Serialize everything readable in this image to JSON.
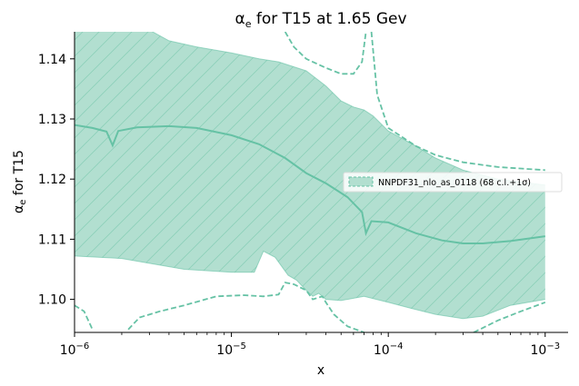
{
  "chart_data": {
    "type": "line",
    "title": "α_e for T15 at 1.65 Gev",
    "title_parts": {
      "alpha": "α",
      "sub": "e",
      "rest": " for T15 at 1.65 Gev"
    },
    "xlabel": "x",
    "ylabel": "α_e for T15",
    "ylabel_parts": {
      "alpha": "α",
      "sub": "e",
      "rest": " for T15"
    },
    "xscale": "log",
    "xlim": [
      1e-06,
      0.0014
    ],
    "ylim": [
      1.0945,
      1.1445
    ],
    "x_ticks": [
      {
        "value": 1e-06,
        "base": "10",
        "exp": "−6"
      },
      {
        "value": 1e-05,
        "base": "10",
        "exp": "−5"
      },
      {
        "value": 0.0001,
        "base": "10",
        "exp": "−4"
      },
      {
        "value": 0.001,
        "base": "10",
        "exp": "−3"
      }
    ],
    "y_ticks": [
      {
        "value": 1.1,
        "label": "1.10"
      },
      {
        "value": 1.11,
        "label": "1.11"
      },
      {
        "value": 1.12,
        "label": "1.12"
      },
      {
        "value": 1.13,
        "label": "1.13"
      },
      {
        "value": 1.14,
        "label": "1.14"
      }
    ],
    "legend": {
      "position": "right",
      "label": "NNPDF31_nlo_as_0118 (68 c.l.+1σ)"
    },
    "color": "#66c2a5",
    "band_fill": "#b2dfd0",
    "series": [
      {
        "name": "NNPDF31_nlo_as_0118 (68 c.l.+1σ)",
        "role": "central",
        "x": [
          1e-06,
          1.3e-06,
          1.6e-06,
          1.75e-06,
          1.9e-06,
          2.5e-06,
          4e-06,
          6e-06,
          1e-05,
          1.5e-05,
          2.2e-05,
          3e-05,
          4e-05,
          5.5e-05,
          6.8e-05,
          7.2e-05,
          7.8e-05,
          0.0001,
          0.00015,
          0.00022,
          0.0003,
          0.0004,
          0.0006,
          0.001
        ],
        "y": [
          1.129,
          1.1285,
          1.1279,
          1.1256,
          1.128,
          1.1286,
          1.1288,
          1.1285,
          1.1273,
          1.1258,
          1.1235,
          1.121,
          1.1193,
          1.117,
          1.1145,
          1.111,
          1.113,
          1.1128,
          1.111,
          1.1098,
          1.1093,
          1.1093,
          1.1097,
          1.1105
        ]
      },
      {
        "name": "68 c.l. upper",
        "role": "band-upper",
        "x": [
          1e-06,
          2.5e-06,
          3e-06,
          4e-06,
          6e-06,
          1e-05,
          1.5e-05,
          2e-05,
          3e-05,
          4e-05,
          5e-05,
          6e-05,
          7e-05,
          8e-05,
          0.0001,
          0.00015,
          0.0002,
          0.0003,
          0.0005,
          0.001
        ],
        "y": [
          1.147,
          1.145,
          1.1448,
          1.143,
          1.142,
          1.141,
          1.14,
          1.1395,
          1.138,
          1.1355,
          1.133,
          1.132,
          1.1315,
          1.1305,
          1.128,
          1.1255,
          1.1235,
          1.1215,
          1.12,
          1.119
        ]
      },
      {
        "name": "68 c.l. lower",
        "role": "band-lower",
        "x": [
          1e-06,
          2e-06,
          3e-06,
          5e-06,
          1e-05,
          1.4e-05,
          1.6e-05,
          1.9e-05,
          2.3e-05,
          2.6e-05,
          3e-05,
          3.3e-05,
          3.6e-05,
          4e-05,
          5e-05,
          7e-05,
          0.0001,
          0.00014,
          0.0002,
          0.0003,
          0.0004,
          0.0006,
          0.001
        ],
        "y": [
          1.1072,
          1.1068,
          1.106,
          1.105,
          1.1045,
          1.1045,
          1.108,
          1.107,
          1.104,
          1.1032,
          1.1015,
          1.1005,
          1.101,
          1.1,
          1.0998,
          1.1005,
          1.0995,
          1.0985,
          1.0975,
          1.0968,
          1.0972,
          1.099,
          1.1
        ]
      },
      {
        "name": "+1σ upper",
        "role": "sigma-upper",
        "segments": [
          {
            "x": [
              2.2e-05,
              2.5e-05,
              3e-05,
              4e-05,
              5e-05,
              6e-05,
              6.8e-05,
              7.2e-05
            ],
            "y": [
              1.1445,
              1.142,
              1.14,
              1.1385,
              1.1375,
              1.1375,
              1.1395,
              1.1445
            ]
          },
          {
            "x": [
              7.8e-05,
              8.5e-05,
              0.0001,
              0.00015,
              0.0002,
              0.0003,
              0.0005,
              0.001
            ],
            "y": [
              1.1445,
              1.134,
              1.1285,
              1.1255,
              1.124,
              1.1228,
              1.122,
              1.1215
            ]
          }
        ]
      },
      {
        "name": "+1σ lower",
        "role": "sigma-lower",
        "segments": [
          {
            "x": [
              1e-06,
              1.15e-06,
              1.3e-06
            ],
            "y": [
              1.099,
              1.098,
              1.095
            ]
          },
          {
            "x": [
              2.2e-06,
              2.6e-06,
              3.5e-06,
              5e-06,
              8e-06,
              1.2e-05,
              1.6e-05,
              2e-05,
              2.2e-05,
              2.5e-05,
              3e-05,
              3.3e-05,
              3.8e-05,
              4e-05,
              4.5e-05,
              5.5e-05,
              7e-05,
              8e-05,
              0.0001,
              0.00013,
              0.00016,
              0.0002
            ],
            "y": [
              1.095,
              1.097,
              1.098,
              1.099,
              1.1005,
              1.1007,
              1.1005,
              1.1008,
              1.1028,
              1.1025,
              1.1015,
              1.1,
              1.1005,
              1.0995,
              1.0975,
              1.0955,
              1.0945,
              1.0935,
              1.092,
              1.091,
              1.092,
              1.091
            ]
          },
          {
            "x": [
              0.00035,
              0.0005,
              0.0007,
              0.001
            ],
            "y": [
              1.0945,
              1.0965,
              1.098,
              1.0995
            ]
          }
        ]
      }
    ]
  }
}
